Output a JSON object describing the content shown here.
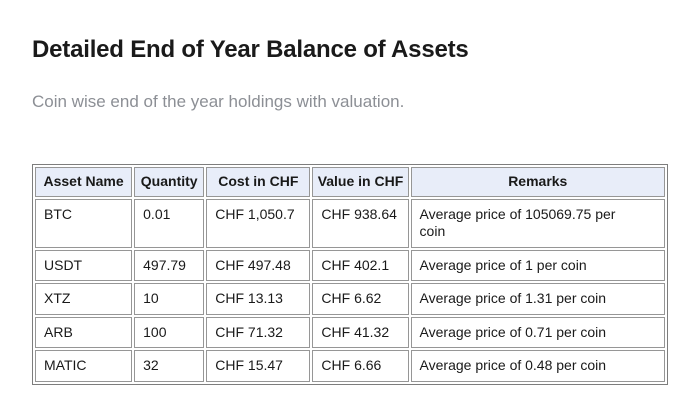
{
  "page": {
    "title": "Detailed End of Year Balance of Assets",
    "subtitle": "Coin wise end of the year holdings with valuation."
  },
  "table": {
    "columns": [
      "Asset Name",
      "Quantity",
      "Cost in CHF",
      "Value in CHF",
      "Remarks"
    ],
    "rows": [
      {
        "asset": "BTC",
        "quantity": "0.01",
        "cost": "CHF 1,050.7",
        "value": "CHF 938.64",
        "remarks": "Average price of 105069.75 per coin"
      },
      {
        "asset": "USDT",
        "quantity": "497.79",
        "cost": "CHF 497.48",
        "value": "CHF 402.1",
        "remarks": "Average price of 1 per coin"
      },
      {
        "asset": "XTZ",
        "quantity": "10",
        "cost": "CHF 13.13",
        "value": "CHF 6.62",
        "remarks": "Average price of 1.31 per coin"
      },
      {
        "asset": "ARB",
        "quantity": "100",
        "cost": "CHF 71.32",
        "value": "CHF 41.32",
        "remarks": "Average price of 0.71 per coin"
      },
      {
        "asset": "MATIC",
        "quantity": "32",
        "cost": "CHF 15.47",
        "value": "CHF 6.66",
        "remarks": "Average price of 0.48 per coin"
      }
    ]
  },
  "colors": {
    "header_bg": "#e8edf9",
    "outer_border": "#7d7d7d",
    "cell_border": "#969696",
    "title_text": "#1a1a1a",
    "subtitle_text": "#8c8f95",
    "body_text": "#191919"
  }
}
